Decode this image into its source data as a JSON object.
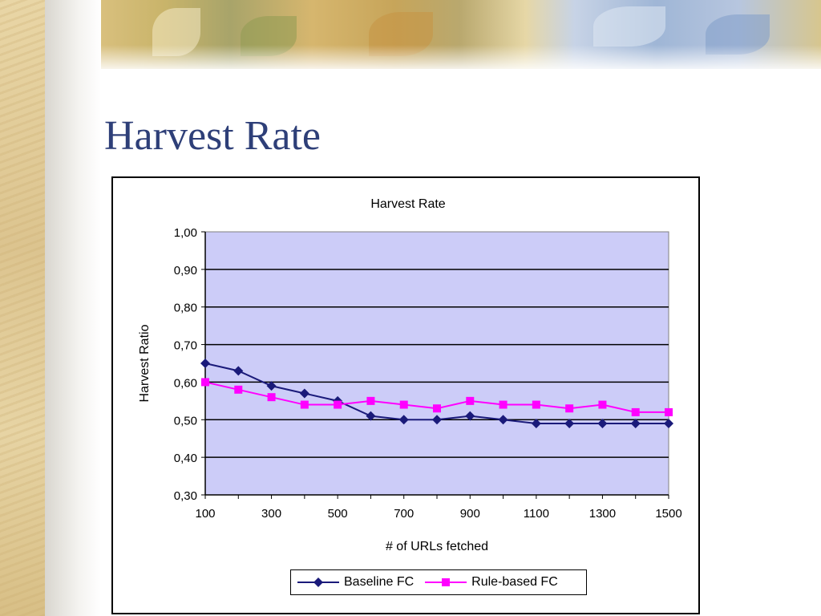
{
  "slide": {
    "title": "Harvest Rate"
  },
  "colors": {
    "title": "#2e3f78",
    "plot_background": "#ccccf8",
    "baseline": "#1a1a7a",
    "rule_based": "#ff00ff"
  },
  "chart_data": {
    "type": "line",
    "title": "Harvest Rate",
    "xlabel": "# of URLs fetched",
    "ylabel": "Harvest Ratio",
    "x": [
      100,
      200,
      300,
      400,
      500,
      600,
      700,
      800,
      900,
      1000,
      1100,
      1200,
      1300,
      1400,
      1500
    ],
    "x_tick_labels": [
      "100",
      "300",
      "500",
      "700",
      "900",
      "1100",
      "1300",
      "1500"
    ],
    "x_tick_values": [
      100,
      300,
      500,
      700,
      900,
      1100,
      1300,
      1500
    ],
    "y_tick_labels": [
      "1,00",
      "0,90",
      "0,80",
      "0,70",
      "0,60",
      "0,50",
      "0,40",
      "0,30"
    ],
    "y_tick_values": [
      1.0,
      0.9,
      0.8,
      0.7,
      0.6,
      0.5,
      0.4,
      0.3
    ],
    "ylim": [
      0.3,
      1.0
    ],
    "xlim": [
      100,
      1500
    ],
    "grid": true,
    "legend_position": "bottom",
    "series": [
      {
        "name": "Baseline FC",
        "marker": "diamond",
        "values": [
          0.65,
          0.63,
          0.59,
          0.57,
          0.55,
          0.51,
          0.5,
          0.5,
          0.51,
          0.5,
          0.49,
          0.49,
          0.49,
          0.49,
          0.49
        ]
      },
      {
        "name": "Rule-based FC",
        "marker": "square",
        "values": [
          0.6,
          0.58,
          0.56,
          0.54,
          0.54,
          0.55,
          0.54,
          0.53,
          0.55,
          0.54,
          0.54,
          0.53,
          0.54,
          0.52,
          0.52
        ]
      }
    ]
  }
}
